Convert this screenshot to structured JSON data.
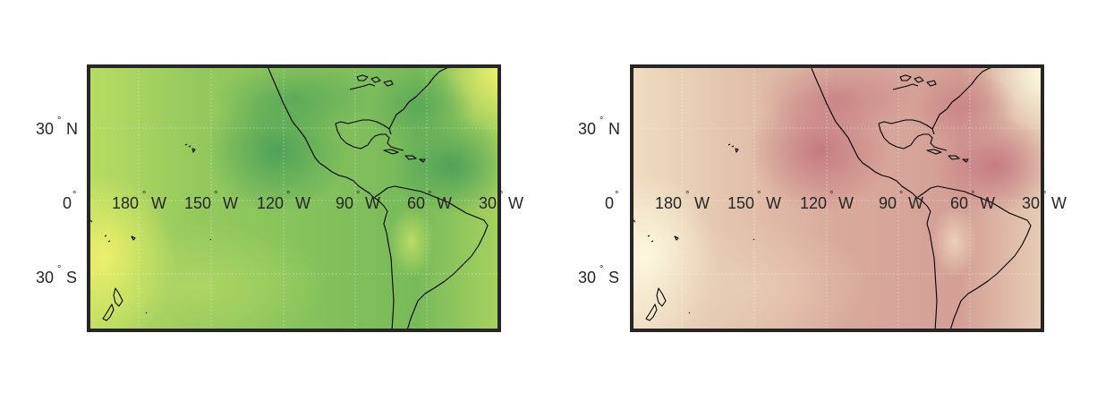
{
  "panels": [
    {
      "id": "left",
      "colormap": "green-yellow",
      "colors": {
        "dark": "#4fa45a",
        "mid": "#86c35c",
        "light": "#e4ef68"
      }
    },
    {
      "id": "right",
      "colormap": "red-cream",
      "colors": {
        "dark": "#c37c82",
        "mid": "#dcaf9f",
        "light": "#fbf7dd"
      }
    }
  ],
  "lat_labels": [
    {
      "num": "30",
      "hemi": "N"
    },
    {
      "num": "0",
      "hemi": ""
    },
    {
      "num": "30",
      "hemi": "S"
    }
  ],
  "lon_labels": [
    {
      "num": "180",
      "hemi": "W"
    },
    {
      "num": "150",
      "hemi": "W"
    },
    {
      "num": "120",
      "hemi": "W"
    },
    {
      "num": "90",
      "hemi": "W"
    },
    {
      "num": "60",
      "hemi": "W"
    },
    {
      "num": "30",
      "hemi": "W"
    }
  ],
  "degree_symbol": "°",
  "frame_color": "#262626",
  "grid": true
}
